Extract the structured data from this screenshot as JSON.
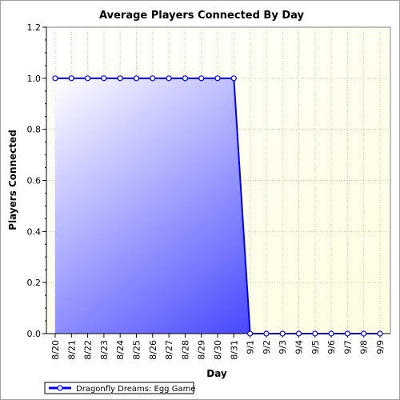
{
  "chart_data": {
    "type": "area",
    "title": "Average Players Connected By Day",
    "xlabel": "Day",
    "ylabel": "Players Connected",
    "ylim": [
      0,
      1.2
    ],
    "yticks": [
      "0.0",
      "0.2",
      "0.4",
      "0.6",
      "0.8",
      "1.0",
      "1.2"
    ],
    "grid": true,
    "legend_position": "bottom-left",
    "categories": [
      "8/20",
      "8/21",
      "8/22",
      "8/23",
      "8/24",
      "8/25",
      "8/26",
      "8/27",
      "8/28",
      "8/29",
      "8/30",
      "8/31",
      "9/1",
      "9/2",
      "9/3",
      "9/4",
      "9/5",
      "9/6",
      "9/7",
      "9/8",
      "9/9"
    ],
    "series": [
      {
        "name": "Dragonfly Dreams: Egg Game",
        "color": "#0000ff",
        "values": [
          1,
          1,
          1,
          1,
          1,
          1,
          1,
          1,
          1,
          1,
          1,
          1,
          0,
          0,
          0,
          0,
          0,
          0,
          0,
          0,
          0
        ]
      }
    ]
  }
}
